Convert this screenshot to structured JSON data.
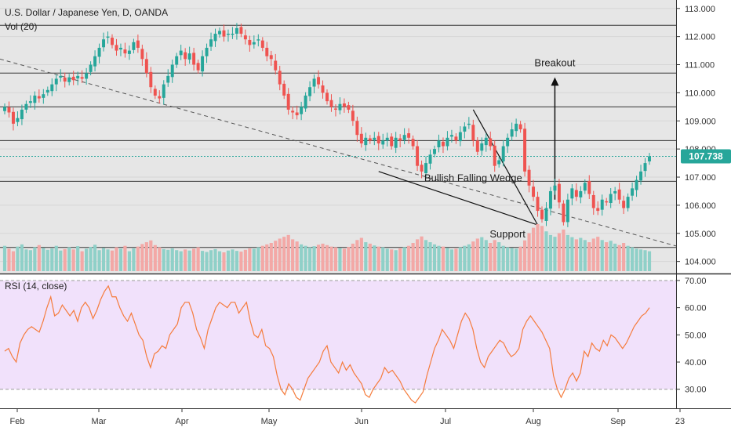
{
  "header": {
    "symbol": "U.S. Dollar / Japanese Yen, D, OANDA",
    "volume_label": "Vol (20)"
  },
  "rsi_label": "RSI (14, close)",
  "colors": {
    "up": "#26a69a",
    "down": "#ef5350",
    "vol_up": "#8fd0c8",
    "vol_down": "#f3a8a6",
    "rsi_line": "#f57c3d",
    "rsi_band": "#f1e1fb",
    "price_tag": "#26a69a",
    "panel_bg": "#e6e6e6"
  },
  "chart_data": [
    {
      "type": "candlestick",
      "ylim": [
        103.6,
        113.3
      ],
      "price_ticks": [
        "113.000",
        "112.000",
        "111.000",
        "110.000",
        "109.000",
        "108.000",
        "107.000",
        "106.000",
        "105.000",
        "104.000"
      ],
      "price_tick_values": [
        113,
        112,
        111,
        110,
        109,
        108,
        107,
        106,
        105,
        104
      ],
      "x_tick_labels": [
        "Feb",
        "Mar",
        "Apr",
        "May",
        "Jun",
        "Jul",
        "Aug",
        "Sep",
        "23"
      ],
      "last_price": 107.738,
      "last_price_label": "107.738",
      "horizontal_levels": [
        112.4,
        110.7,
        109.5,
        108.3,
        106.85,
        104.5
      ],
      "annotations": [
        {
          "text": "Breakout",
          "x": 128,
          "y": 110.95
        },
        {
          "text": "Bullish Falling Wedge",
          "x": 109,
          "y": 106.85
        },
        {
          "text": "Support",
          "x": 117,
          "y": 104.85
        }
      ],
      "closes": [
        109.5,
        109.3,
        108.9,
        109.1,
        109.4,
        109.6,
        109.7,
        109.9,
        109.8,
        109.95,
        110.1,
        110.3,
        110.5,
        110.6,
        110.4,
        110.55,
        110.45,
        110.6,
        110.5,
        110.7,
        111.0,
        111.3,
        111.6,
        111.9,
        112.0,
        111.7,
        111.5,
        111.6,
        111.4,
        111.5,
        111.8,
        111.6,
        111.2,
        110.7,
        110.2,
        109.9,
        109.8,
        110.3,
        110.6,
        111.0,
        111.3,
        111.5,
        111.2,
        111.4,
        111.0,
        110.8,
        111.3,
        111.6,
        111.9,
        112.1,
        112.2,
        112.0,
        112.1,
        112.1,
        112.3,
        112.1,
        111.9,
        111.7,
        111.8,
        111.9,
        111.6,
        111.3,
        111.2,
        110.8,
        110.3,
        109.9,
        109.4,
        109.3,
        109.2,
        109.5,
        109.9,
        110.2,
        110.5,
        110.3,
        110.0,
        109.7,
        109.5,
        109.4,
        109.6,
        109.5,
        109.4,
        109.0,
        108.5,
        108.2,
        108.4,
        108.3,
        108.4,
        108.2,
        108.3,
        108.4,
        108.1,
        108.4,
        108.3,
        108.5,
        108.4,
        108.1,
        107.4,
        107.2,
        107.5,
        107.8,
        108.0,
        108.3,
        108.1,
        108.4,
        108.5,
        108.3,
        108.6,
        108.8,
        108.9,
        108.3,
        107.9,
        108.2,
        108.4,
        108.1,
        107.4,
        107.6,
        108.1,
        108.4,
        108.7,
        108.9,
        108.7,
        107.2,
        106.7,
        106.3,
        105.8,
        105.5,
        105.9,
        106.5,
        106.7,
        106.1,
        105.4,
        106.2,
        106.6,
        106.3,
        106.5,
        106.8,
        106.4,
        105.9,
        105.8,
        106.2,
        106.1,
        106.4,
        106.5,
        106.2,
        105.9,
        106.3,
        106.6,
        106.9,
        107.2,
        107.5,
        107.74
      ],
      "volume": [
        0.7,
        0.62,
        0.55,
        0.68,
        0.74,
        0.6,
        0.58,
        0.66,
        0.72,
        0.64,
        0.59,
        0.63,
        0.7,
        0.57,
        0.61,
        0.66,
        0.6,
        0.69,
        0.55,
        0.62,
        0.67,
        0.73,
        0.58,
        0.64,
        0.6,
        0.57,
        0.66,
        0.62,
        0.7,
        0.55,
        0.63,
        0.68,
        0.75,
        0.8,
        0.85,
        0.72,
        0.66,
        0.61,
        0.59,
        0.63,
        0.58,
        0.55,
        0.6,
        0.57,
        0.62,
        0.66,
        0.56,
        0.53,
        0.58,
        0.61,
        0.55,
        0.52,
        0.57,
        0.6,
        0.56,
        0.54,
        0.59,
        0.63,
        0.62,
        0.66,
        0.7,
        0.74,
        0.78,
        0.84,
        0.9,
        0.95,
        1.0,
        0.88,
        0.82,
        0.74,
        0.7,
        0.66,
        0.69,
        0.73,
        0.76,
        0.72,
        0.68,
        0.66,
        0.64,
        0.62,
        0.67,
        0.76,
        0.86,
        0.92,
        0.8,
        0.76,
        0.71,
        0.68,
        0.66,
        0.62,
        0.6,
        0.58,
        0.63,
        0.66,
        0.7,
        0.78,
        0.88,
        0.96,
        0.86,
        0.8,
        0.74,
        0.7,
        0.68,
        0.64,
        0.6,
        0.62,
        0.66,
        0.7,
        0.74,
        0.82,
        0.9,
        0.94,
        0.86,
        0.78,
        0.86,
        0.8,
        0.7,
        0.66,
        0.64,
        0.62,
        0.68,
        0.85,
        1.05,
        1.2,
        1.3,
        1.25,
        1.1,
        1.0,
        0.95,
        1.05,
        1.15,
        1.0,
        0.94,
        0.88,
        0.92,
        0.86,
        0.8,
        0.9,
        0.95,
        0.86,
        0.8,
        0.84,
        0.76,
        0.72,
        0.78,
        0.7,
        0.66,
        0.62,
        0.6,
        0.58,
        0.55
      ]
    },
    {
      "type": "line",
      "name": "RSI (14, close)",
      "ylim": [
        23,
        72
      ],
      "ticks": [
        "70.00",
        "60.00",
        "50.00",
        "40.00",
        "30.00"
      ],
      "tick_values": [
        70,
        60,
        50,
        40,
        30
      ],
      "band": [
        30,
        70
      ],
      "values": [
        44,
        45,
        42,
        40,
        47,
        50,
        52,
        53,
        52,
        51,
        55,
        60,
        64,
        57,
        58,
        61,
        59,
        57,
        59,
        55,
        60,
        62,
        60,
        56,
        59,
        63,
        66,
        68,
        64,
        64,
        60,
        57,
        55,
        58,
        54,
        50,
        48,
        42,
        38,
        43,
        44,
        46,
        45,
        50,
        52,
        54,
        60,
        62,
        62,
        58,
        52,
        49,
        45,
        52,
        56,
        60,
        62,
        61,
        60,
        62,
        62,
        58,
        60,
        62,
        55,
        50,
        49,
        52,
        46,
        45,
        42,
        35,
        30,
        28,
        32,
        30,
        27,
        26,
        30,
        34,
        36,
        38,
        40,
        44,
        46,
        40,
        38,
        36,
        40,
        37,
        39,
        36,
        34,
        32,
        28,
        27,
        30,
        32,
        34,
        38,
        36,
        37,
        35,
        33,
        30,
        28,
        26,
        25,
        27,
        29,
        35,
        40,
        45,
        48,
        52,
        50,
        48,
        45,
        50,
        55,
        58,
        56,
        52,
        45,
        40,
        38,
        42,
        44,
        46,
        48,
        47,
        44,
        42,
        43,
        45,
        52,
        55,
        57,
        55,
        53,
        51,
        48,
        45,
        35,
        30,
        27,
        30,
        34,
        36,
        33,
        36,
        44,
        42,
        47,
        45,
        44,
        48,
        46,
        50,
        49,
        47,
        45,
        47,
        50,
        53,
        55,
        57,
        58,
        60
      ]
    }
  ]
}
